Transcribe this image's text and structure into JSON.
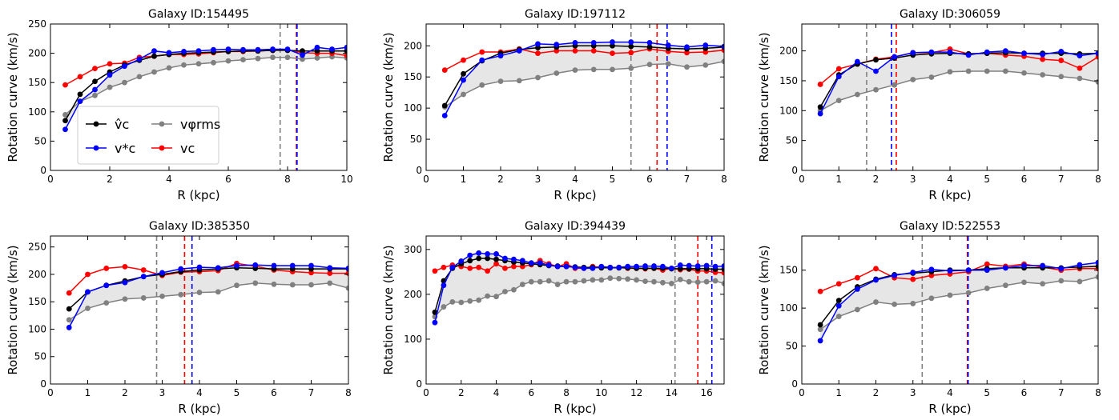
{
  "figure": {
    "colors": {
      "vc_hat": "#000000",
      "vc_star": "#0000ff",
      "vphi_rms": "#808080",
      "vc": "#ff0000",
      "band_fill": "#e6e6e6",
      "vline_gray": "#808080",
      "vline_red": "#ff0000",
      "vline_blue": "#0000ff"
    },
    "legend": {
      "placement": "lower-left of first panel",
      "entries": [
        {
          "key": "vc_hat",
          "label": "v̂c"
        },
        {
          "key": "vc_star",
          "label": "v*c"
        },
        {
          "key": "vphi_rms",
          "label": "vφrms"
        },
        {
          "key": "vc",
          "label": "vc"
        }
      ]
    }
  },
  "chart_data": [
    {
      "type": "line",
      "title": "Galaxy ID:154495",
      "xlabel": "R (kpc)",
      "ylabel": "Rotation curve (km/s)",
      "xlim": [
        0,
        10
      ],
      "ylim": [
        0,
        250
      ],
      "xticks": [
        0,
        2,
        4,
        6,
        8,
        10
      ],
      "yticks": [
        0,
        50,
        100,
        150,
        200,
        250
      ],
      "grid": false,
      "x": [
        0.5,
        1,
        1.5,
        2,
        2.5,
        3,
        3.5,
        4,
        4.5,
        5,
        5.5,
        6,
        6.5,
        7,
        7.5,
        8,
        8.5,
        9,
        9.5,
        10
      ],
      "series": [
        {
          "key": "vc_hat",
          "values": [
            85,
            130,
            152,
            168,
            180,
            188,
            195,
            198,
            200,
            201,
            202,
            203,
            204,
            204,
            205,
            205,
            204,
            204,
            204,
            204
          ]
        },
        {
          "key": "vc_star",
          "values": [
            70,
            118,
            138,
            163,
            178,
            190,
            204,
            201,
            203,
            204,
            206,
            207,
            206,
            206,
            207,
            207,
            197,
            210,
            207,
            210
          ]
        },
        {
          "key": "vphi_rms",
          "values": [
            95,
            118,
            128,
            142,
            150,
            160,
            168,
            175,
            180,
            182,
            184,
            187,
            189,
            191,
            193,
            193,
            190,
            192,
            194,
            192
          ]
        },
        {
          "key": "vc",
          "values": [
            146,
            160,
            174,
            182,
            183,
            193,
            195,
            198,
            198,
            199,
            201,
            203,
            203,
            204,
            205,
            206,
            201,
            200,
            200,
            196
          ]
        }
      ],
      "vlines": [
        {
          "x": 7.75,
          "color_key": "vline_gray"
        },
        {
          "x": 8.3,
          "color_key": "vline_red"
        },
        {
          "x": 8.32,
          "color_key": "vline_blue"
        }
      ],
      "legend": true
    },
    {
      "type": "line",
      "title": "Galaxy ID:197112",
      "xlabel": "R (kpc)",
      "ylabel": "Rotation curve (km/s)",
      "xlim": [
        0,
        8
      ],
      "ylim": [
        0,
        235
      ],
      "xticks": [
        0,
        1,
        2,
        3,
        4,
        5,
        6,
        7,
        8
      ],
      "yticks": [
        0,
        50,
        100,
        150,
        200
      ],
      "grid": false,
      "x": [
        0.5,
        1,
        1.5,
        2,
        2.5,
        3,
        3.5,
        4,
        4.5,
        5,
        5.5,
        6,
        6.5,
        7,
        7.5,
        8
      ],
      "series": [
        {
          "key": "vc_hat",
          "values": [
            104,
            155,
            176,
            188,
            194,
            197,
            198,
            200,
            200,
            200,
            199,
            198,
            196,
            195,
            196,
            198
          ]
        },
        {
          "key": "vc_star",
          "values": [
            88,
            145,
            177,
            184,
            192,
            203,
            202,
            205,
            205,
            206,
            206,
            205,
            201,
            198,
            201,
            199
          ]
        },
        {
          "key": "vphi_rms",
          "values": [
            102,
            122,
            137,
            143,
            144,
            149,
            156,
            161,
            162,
            162,
            164,
            170,
            171,
            166,
            169,
            175
          ]
        },
        {
          "key": "vc",
          "values": [
            161,
            177,
            190,
            190,
            195,
            188,
            192,
            192,
            192,
            188,
            189,
            195,
            191,
            189,
            190,
            193
          ]
        }
      ],
      "vlines": [
        {
          "x": 5.5,
          "color_key": "vline_gray"
        },
        {
          "x": 6.2,
          "color_key": "vline_red"
        },
        {
          "x": 6.47,
          "color_key": "vline_blue"
        }
      ],
      "legend": false
    },
    {
      "type": "line",
      "title": "Galaxy ID:306059",
      "xlabel": "R (kpc)",
      "ylabel": "Rotation curve (km/s)",
      "xlim": [
        0,
        8
      ],
      "ylim": [
        0,
        245
      ],
      "xticks": [
        0,
        1,
        2,
        3,
        4,
        5,
        6,
        7,
        8
      ],
      "yticks": [
        0,
        50,
        100,
        150,
        200
      ],
      "grid": false,
      "x": [
        0.5,
        1,
        1.5,
        2,
        2.5,
        3,
        3.5,
        4,
        4.5,
        5,
        5.5,
        6,
        6.5,
        7,
        7.5,
        8
      ],
      "series": [
        {
          "key": "vc_hat",
          "values": [
            106,
            160,
            178,
            185,
            188,
            193,
            195,
            196,
            195,
            196,
            197,
            196,
            196,
            196,
            195,
            196
          ]
        },
        {
          "key": "vc_star",
          "values": [
            95,
            157,
            182,
            166,
            190,
            197,
            198,
            198,
            193,
            198,
            200,
            196,
            194,
            199,
            192,
            196
          ]
        },
        {
          "key": "vphi_rms",
          "values": [
            100,
            117,
            127,
            135,
            143,
            152,
            156,
            165,
            166,
            166,
            166,
            163,
            160,
            157,
            154,
            148
          ]
        },
        {
          "key": "vc",
          "values": [
            144,
            170,
            178,
            186,
            190,
            197,
            197,
            203,
            195,
            196,
            193,
            191,
            186,
            184,
            171,
            190
          ]
        }
      ],
      "vlines": [
        {
          "x": 1.75,
          "color_key": "vline_gray"
        },
        {
          "x": 2.55,
          "color_key": "vline_red"
        },
        {
          "x": 2.42,
          "color_key": "vline_blue"
        }
      ],
      "legend": false
    },
    {
      "type": "line",
      "title": "Galaxy ID:385350",
      "xlabel": "R (kpc)",
      "ylabel": "Rotation curve (km/s)",
      "xlim": [
        0,
        8
      ],
      "ylim": [
        0,
        270
      ],
      "xticks": [
        0,
        1,
        2,
        3,
        4,
        5,
        6,
        7,
        8
      ],
      "yticks": [
        0,
        50,
        100,
        150,
        200,
        250
      ],
      "grid": false,
      "x": [
        0.5,
        1,
        1.5,
        2,
        2.5,
        3,
        3.5,
        4,
        4.5,
        5,
        5.5,
        6,
        6.5,
        7,
        7.5,
        8
      ],
      "series": [
        {
          "key": "vc_hat",
          "values": [
            137,
            168,
            180,
            188,
            196,
            200,
            205,
            208,
            210,
            212,
            211,
            210,
            210,
            210,
            210,
            210
          ]
        },
        {
          "key": "vc_star",
          "values": [
            103,
            168,
            180,
            185,
            196,
            203,
            210,
            213,
            212,
            216,
            217,
            216,
            216,
            216,
            212,
            211
          ]
        },
        {
          "key": "vphi_rms",
          "values": [
            117,
            138,
            148,
            155,
            157,
            160,
            163,
            167,
            168,
            180,
            184,
            182,
            181,
            181,
            184,
            175
          ]
        },
        {
          "key": "vc",
          "values": [
            166,
            200,
            211,
            214,
            208,
            198,
            204,
            205,
            207,
            220,
            215,
            208,
            205,
            203,
            202,
            202
          ]
        }
      ],
      "vlines": [
        {
          "x": 2.85,
          "color_key": "vline_gray"
        },
        {
          "x": 3.6,
          "color_key": "vline_red"
        },
        {
          "x": 3.8,
          "color_key": "vline_blue"
        }
      ],
      "legend": false
    },
    {
      "type": "line",
      "title": "Galaxy ID:394439",
      "xlabel": "R (kpc)",
      "ylabel": "Rotation curve (km/s)",
      "xlim": [
        0,
        17
      ],
      "ylim": [
        0,
        330
      ],
      "xticks": [
        0,
        2,
        4,
        6,
        8,
        10,
        12,
        14,
        16
      ],
      "yticks": [
        0,
        100,
        200,
        300
      ],
      "grid": false,
      "x": [
        0.5,
        1,
        1.5,
        2,
        2.5,
        3,
        3.5,
        4,
        4.5,
        5,
        5.5,
        6,
        6.5,
        7,
        7.5,
        8,
        8.5,
        9,
        9.5,
        10,
        10.5,
        11,
        11.5,
        12,
        12.5,
        13,
        13.5,
        14,
        14.5,
        15,
        15.5,
        16,
        16.5,
        17
      ],
      "series": [
        {
          "key": "vc_hat",
          "values": [
            160,
            230,
            258,
            268,
            275,
            280,
            280,
            278,
            275,
            272,
            270,
            268,
            266,
            264,
            263,
            262,
            261,
            260,
            260,
            259,
            259,
            259,
            259,
            258,
            258,
            258,
            258,
            257,
            257,
            257,
            257,
            257,
            256,
            256
          ]
        },
        {
          "key": "vc_star",
          "values": [
            137,
            220,
            260,
            274,
            287,
            292,
            290,
            290,
            280,
            278,
            275,
            270,
            270,
            265,
            262,
            262,
            260,
            258,
            258,
            262,
            260,
            260,
            262,
            262,
            263,
            263,
            262,
            258,
            265,
            264,
            263,
            264,
            262,
            263
          ]
        },
        {
          "key": "vphi_rms",
          "values": [
            150,
            172,
            183,
            182,
            185,
            187,
            196,
            195,
            206,
            210,
            222,
            228,
            228,
            230,
            222,
            228,
            228,
            230,
            232,
            232,
            236,
            235,
            234,
            232,
            229,
            228,
            226,
            224,
            233,
            228,
            227,
            228,
            230,
            224
          ]
        },
        {
          "key": "vc",
          "values": [
            252,
            260,
            265,
            262,
            258,
            260,
            252,
            268,
            258,
            262,
            262,
            266,
            275,
            268,
            262,
            268,
            258,
            258,
            262,
            260,
            260,
            260,
            258,
            258,
            257,
            258,
            254,
            258,
            255,
            256,
            252,
            252,
            249,
            248
          ]
        }
      ],
      "vlines": [
        {
          "x": 14.2,
          "color_key": "vline_gray"
        },
        {
          "x": 15.5,
          "color_key": "vline_red"
        },
        {
          "x": 16.3,
          "color_key": "vline_blue"
        }
      ],
      "legend": false
    },
    {
      "type": "line",
      "title": "Galaxy ID:522553",
      "xlabel": "R (kpc)",
      "ylabel": "Rotation curve (km/s)",
      "xlim": [
        0,
        8
      ],
      "ylim": [
        0,
        195
      ],
      "xticks": [
        0,
        1,
        2,
        3,
        4,
        5,
        6,
        7,
        8
      ],
      "yticks": [
        0,
        50,
        100,
        150
      ],
      "grid": false,
      "x": [
        0.5,
        1,
        1.5,
        2,
        2.5,
        3,
        3.5,
        4,
        4.5,
        5,
        5.5,
        6,
        6.5,
        7,
        7.5,
        8
      ],
      "series": [
        {
          "key": "vc_hat",
          "values": [
            78,
            110,
            128,
            138,
            144,
            146,
            148,
            150,
            150,
            152,
            153,
            153,
            153,
            153,
            154,
            155
          ]
        },
        {
          "key": "vc_star",
          "values": [
            57,
            103,
            125,
            137,
            143,
            147,
            151,
            149,
            150,
            150,
            153,
            156,
            156,
            152,
            157,
            160
          ]
        },
        {
          "key": "vphi_rms",
          "values": [
            72,
            89,
            98,
            108,
            105,
            106,
            113,
            117,
            120,
            126,
            130,
            134,
            132,
            136,
            135,
            141
          ]
        },
        {
          "key": "vc",
          "values": [
            122,
            132,
            140,
            152,
            140,
            138,
            143,
            145,
            148,
            158,
            155,
            158,
            154,
            150,
            152,
            152
          ]
        }
      ],
      "vlines": [
        {
          "x": 3.25,
          "color_key": "vline_gray"
        },
        {
          "x": 4.47,
          "color_key": "vline_red"
        },
        {
          "x": 4.49,
          "color_key": "vline_blue"
        }
      ],
      "legend": false
    }
  ]
}
